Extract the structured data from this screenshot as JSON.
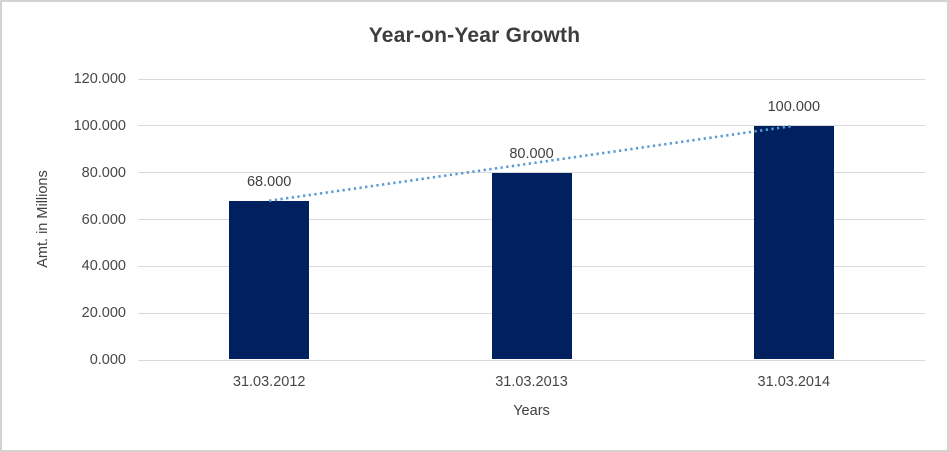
{
  "chart_data": {
    "type": "bar",
    "title": "Year-on-Year Growth",
    "xlabel": "Years",
    "ylabel": "Amt. in Millions",
    "categories": [
      "31.03.2012",
      "31.03.2013",
      "31.03.2014"
    ],
    "values": [
      68,
      80,
      100
    ],
    "data_labels": [
      "68.000",
      "80.000",
      "100.000"
    ],
    "ylim": [
      0,
      120
    ],
    "ytick_step": 20,
    "ytick_labels": [
      "0.000",
      "20.000",
      "40.000",
      "60.000",
      "80.000",
      "100.000",
      "120.000"
    ],
    "grid": true,
    "legend_position": "none",
    "bar_color": "#002060",
    "gridline_color": "#d9d9d9",
    "trendline": {
      "type": "linear",
      "style": "dotted",
      "color": "#5b9bd5",
      "from_value": 68,
      "to_value": 100
    }
  }
}
